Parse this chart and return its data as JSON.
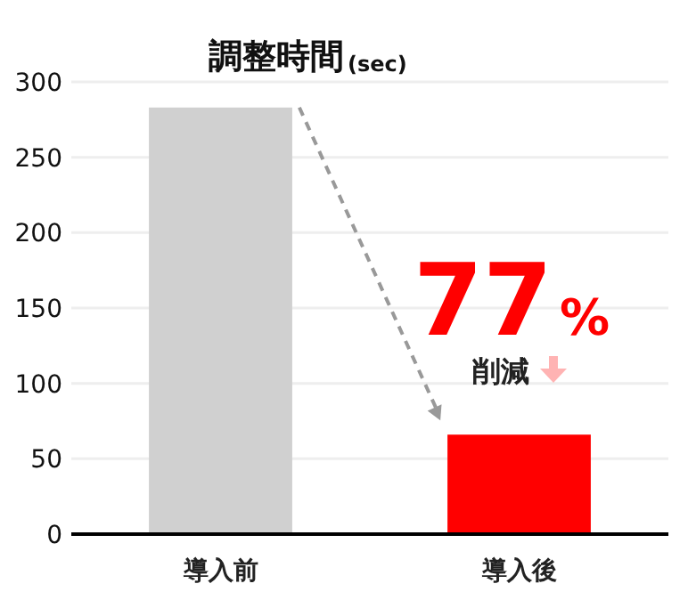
{
  "chart_data": {
    "type": "bar",
    "title": "調整時間",
    "ylabel": "(sec)",
    "categories": [
      "導入前",
      "導入後"
    ],
    "values": [
      283,
      66
    ],
    "colors": [
      "#d0d0d0",
      "#ff0000"
    ],
    "ylim": [
      0,
      300
    ],
    "yticks": [
      0,
      50,
      100,
      150,
      200,
      250,
      300
    ],
    "grid": "y",
    "annotations": [
      "77%",
      "削減"
    ]
  }
}
